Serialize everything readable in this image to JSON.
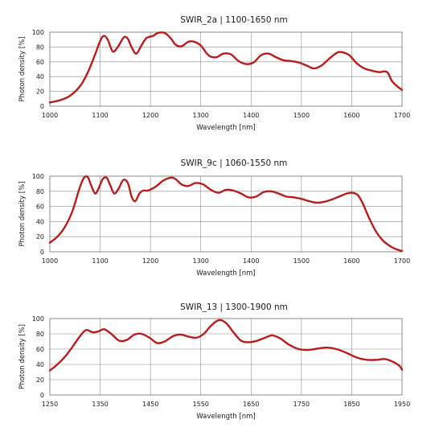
{
  "colors": {
    "curve": "#b41e1e",
    "grid": "#8c8c8c"
  },
  "chart_data": [
    {
      "type": "line",
      "title": "SWIR_2a | 1100-1650 nm",
      "xlabel": "Wavelength  [nm]",
      "ylabel": "Photon density [%]",
      "xlim": [
        1000,
        1700
      ],
      "ylim": [
        0,
        100
      ],
      "xticks": [
        1000,
        1100,
        1200,
        1300,
        1400,
        1500,
        1600,
        1700
      ],
      "yticks": [
        0,
        20,
        40,
        60,
        80,
        100
      ],
      "grid": true,
      "x": [
        1000,
        1020,
        1040,
        1060,
        1075,
        1090,
        1100,
        1107,
        1115,
        1125,
        1135,
        1147,
        1155,
        1163,
        1172,
        1182,
        1192,
        1205,
        1215,
        1228,
        1240,
        1250,
        1262,
        1275,
        1287,
        1300,
        1315,
        1330,
        1345,
        1360,
        1375,
        1390,
        1405,
        1420,
        1435,
        1450,
        1465,
        1480,
        1495,
        1510,
        1525,
        1540,
        1555,
        1570,
        1580,
        1595,
        1610,
        1625,
        1640,
        1655,
        1665,
        1672,
        1680,
        1690,
        1700
      ],
      "y": [
        5,
        8,
        14,
        27,
        45,
        70,
        88,
        95,
        90,
        74,
        80,
        93,
        91,
        79,
        71,
        82,
        92,
        95,
        99,
        99,
        92,
        83,
        81,
        87,
        87,
        82,
        69,
        66,
        71,
        70,
        61,
        57,
        59,
        69,
        71,
        66,
        62,
        61,
        59,
        55,
        51,
        55,
        64,
        72,
        73,
        69,
        58,
        51,
        48,
        46,
        47,
        45,
        34,
        27,
        22
      ]
    },
    {
      "type": "line",
      "title": "SWIR_9c | 1060-1550 nm",
      "xlabel": "Wavelength  [nm]",
      "ylabel": "Photon density [%]",
      "xlim": [
        1000,
        1700
      ],
      "ylim": [
        0,
        100
      ],
      "xticks": [
        1000,
        1100,
        1200,
        1300,
        1400,
        1500,
        1600,
        1700
      ],
      "yticks": [
        0,
        20,
        40,
        60,
        80,
        100
      ],
      "grid": true,
      "x": [
        1000,
        1015,
        1030,
        1045,
        1058,
        1067,
        1075,
        1082,
        1090,
        1097,
        1105,
        1113,
        1120,
        1128,
        1137,
        1146,
        1155,
        1163,
        1170,
        1178,
        1186,
        1195,
        1210,
        1225,
        1240,
        1250,
        1262,
        1275,
        1290,
        1305,
        1320,
        1335,
        1350,
        1365,
        1380,
        1395,
        1410,
        1425,
        1440,
        1455,
        1470,
        1485,
        1500,
        1515,
        1530,
        1545,
        1560,
        1575,
        1590,
        1602,
        1612,
        1622,
        1635,
        1650,
        1665,
        1680,
        1690,
        1700
      ],
      "y": [
        12,
        20,
        33,
        54,
        82,
        97,
        99,
        88,
        77,
        84,
        96,
        98,
        88,
        77,
        84,
        95,
        91,
        72,
        67,
        77,
        81,
        81,
        86,
        94,
        98,
        96,
        89,
        87,
        91,
        89,
        82,
        78,
        82,
        81,
        77,
        72,
        73,
        79,
        80,
        77,
        73,
        72,
        70,
        67,
        65,
        66,
        69,
        73,
        77,
        78,
        75,
        64,
        44,
        25,
        13,
        6,
        3,
        1
      ]
    },
    {
      "type": "line",
      "title": "SWIR_13 | 1300-1900 nm",
      "xlabel": "Wavelength  [nm]",
      "ylabel": "Photon density [%]",
      "xlim": [
        1250,
        1950
      ],
      "ylim": [
        0,
        100
      ],
      "xticks": [
        1250,
        1350,
        1450,
        1550,
        1650,
        1750,
        1850,
        1950
      ],
      "yticks": [
        0,
        20,
        40,
        60,
        80,
        100
      ],
      "grid": true,
      "x": [
        1250,
        1265,
        1280,
        1295,
        1310,
        1322,
        1335,
        1346,
        1358,
        1372,
        1388,
        1403,
        1418,
        1432,
        1448,
        1463,
        1478,
        1495,
        1510,
        1528,
        1542,
        1556,
        1568,
        1580,
        1590,
        1602,
        1615,
        1630,
        1645,
        1662,
        1678,
        1692,
        1708,
        1725,
        1745,
        1765,
        1785,
        1802,
        1820,
        1840,
        1860,
        1880,
        1900,
        1915,
        1930,
        1945,
        1950
      ],
      "y": [
        32,
        40,
        50,
        63,
        77,
        85,
        82,
        83,
        86,
        80,
        71,
        72,
        79,
        80,
        75,
        68,
        70,
        77,
        79,
        76,
        75,
        80,
        89,
        96,
        98,
        93,
        82,
        71,
        69,
        71,
        75,
        78,
        74,
        66,
        60,
        59,
        61,
        62,
        60,
        55,
        49,
        46,
        46,
        47,
        44,
        38,
        33
      ]
    }
  ]
}
